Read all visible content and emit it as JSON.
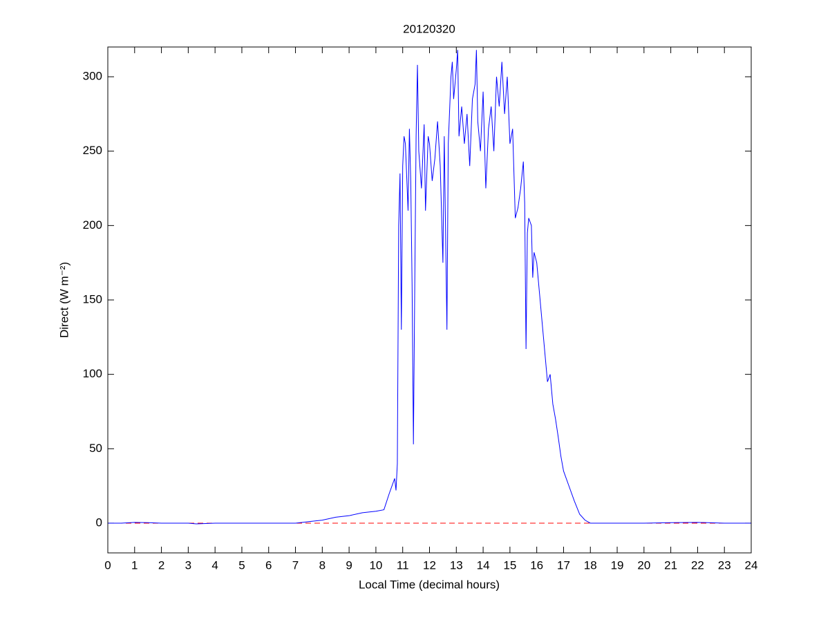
{
  "chart_data": {
    "type": "line",
    "title": "20120320",
    "x_label": "Local Time (decimal hours)",
    "y_label": "Direct (W m⁻²)",
    "xlim": [
      0,
      24
    ],
    "ylim": [
      -20,
      320
    ],
    "xticks": [
      0,
      1,
      2,
      3,
      4,
      5,
      6,
      7,
      8,
      9,
      10,
      11,
      12,
      13,
      14,
      15,
      16,
      17,
      18,
      19,
      20,
      21,
      22,
      23,
      24
    ],
    "yticks": [
      0,
      50,
      100,
      150,
      200,
      250,
      300
    ],
    "grid": false,
    "reference_line": {
      "value": 0,
      "color": "#ff0000",
      "style": "dashed"
    },
    "series": [
      {
        "color": "#0000ff",
        "x": [
          0,
          0.5,
          1,
          1.5,
          2,
          3,
          3.3,
          4,
          5,
          6,
          7,
          7.5,
          8,
          8.5,
          9,
          9.5,
          10,
          10.3,
          10.5,
          10.7,
          10.75,
          10.8,
          10.85,
          10.9,
          10.95,
          11,
          11.05,
          11.1,
          11.2,
          11.25,
          11.3,
          11.35,
          11.4,
          11.45,
          11.5,
          11.55,
          11.6,
          11.7,
          11.8,
          11.85,
          11.95,
          12,
          12.1,
          12.2,
          12.3,
          12.4,
          12.5,
          12.55,
          12.65,
          12.7,
          12.8,
          12.85,
          12.9,
          13,
          13.05,
          13.1,
          13.2,
          13.3,
          13.4,
          13.5,
          13.6,
          13.7,
          13.75,
          13.8,
          13.9,
          14,
          14.1,
          14.2,
          14.3,
          14.4,
          14.5,
          14.6,
          14.7,
          14.8,
          14.9,
          15,
          15.1,
          15.2,
          15.3,
          15.4,
          15.5,
          15.55,
          15.6,
          15.65,
          15.7,
          15.8,
          15.85,
          15.9,
          16,
          16.1,
          16.2,
          16.3,
          16.4,
          16.5,
          16.6,
          16.7,
          16.8,
          16.9,
          17,
          17.2,
          17.4,
          17.6,
          17.8,
          18,
          19,
          20,
          21,
          22,
          23,
          24
        ],
        "values": [
          0,
          0,
          0.5,
          0.3,
          0,
          0,
          -0.5,
          0,
          0,
          0,
          0,
          1,
          2,
          4,
          5,
          7,
          8,
          9,
          20,
          30,
          22,
          40,
          200,
          235,
          130,
          240,
          260,
          255,
          210,
          265,
          230,
          160,
          53,
          160,
          260,
          308,
          250,
          225,
          268,
          210,
          260,
          255,
          230,
          245,
          270,
          240,
          175,
          260,
          130,
          255,
          300,
          310,
          285,
          305,
          318,
          260,
          280,
          255,
          275,
          240,
          285,
          295,
          318,
          270,
          250,
          290,
          225,
          265,
          280,
          250,
          300,
          280,
          310,
          275,
          300,
          255,
          265,
          205,
          212,
          225,
          243,
          215,
          117,
          195,
          205,
          200,
          165,
          182,
          175,
          155,
          135,
          115,
          95,
          100,
          80,
          70,
          58,
          45,
          35,
          25,
          15,
          6,
          2,
          0,
          0,
          0,
          0.3,
          0.5,
          0,
          0
        ]
      }
    ]
  }
}
